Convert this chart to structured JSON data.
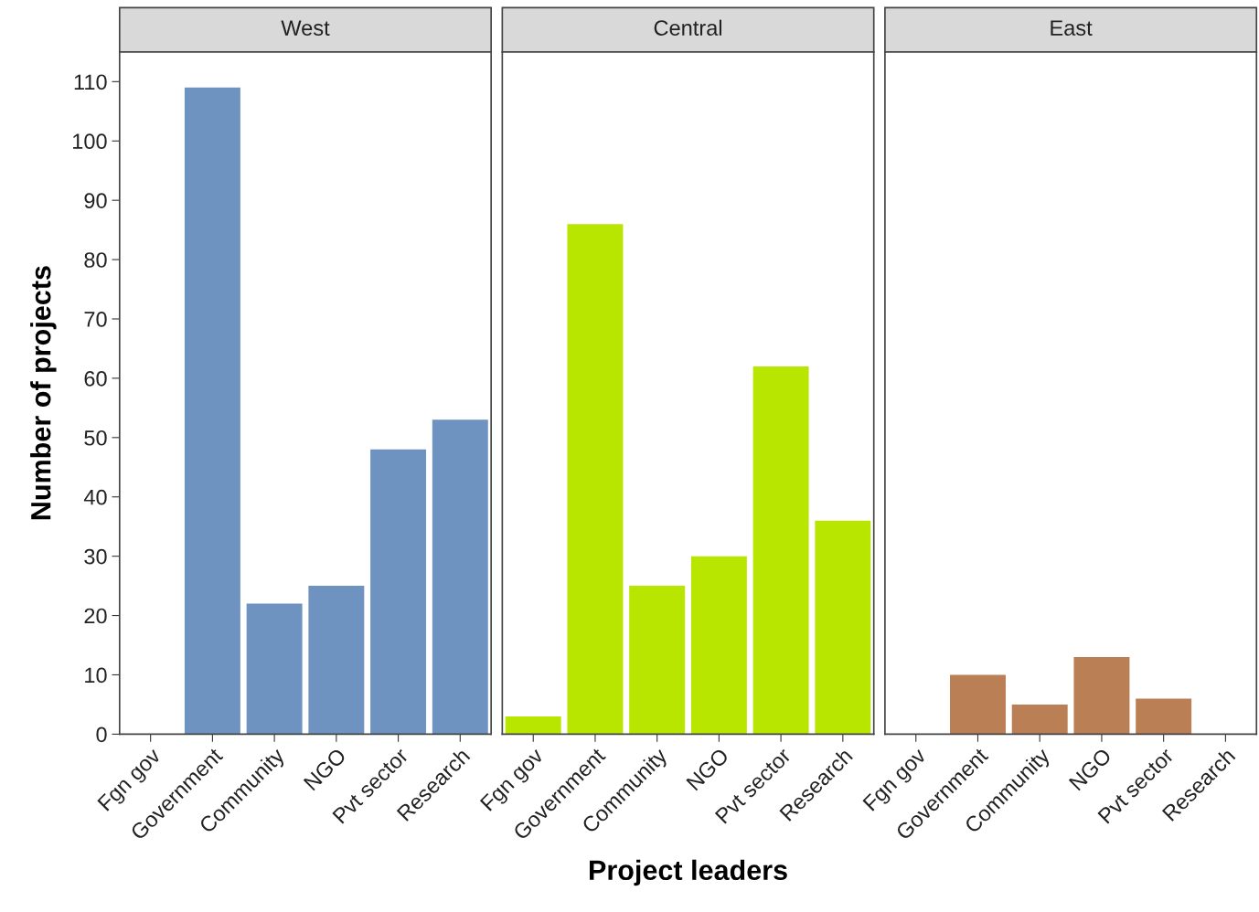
{
  "chart_data": [
    {
      "type": "bar",
      "title": "West",
      "ylabel": "Number of projects",
      "categories": [
        "Fgn gov",
        "Government",
        "Community",
        "NGO",
        "Pvt sector",
        "Research"
      ],
      "values": [
        0,
        109,
        22,
        25,
        48,
        53
      ],
      "color": "#6f93c1",
      "ylim": [
        0,
        115
      ],
      "yticks": [
        0,
        10,
        20,
        30,
        40,
        50,
        60,
        70,
        80,
        90,
        100,
        110
      ],
      "grid": false,
      "legend": false
    },
    {
      "type": "bar",
      "title": "Central",
      "xlabel": "Project leaders",
      "categories": [
        "Fgn gov",
        "Government",
        "Community",
        "NGO",
        "Pvt sector",
        "Research"
      ],
      "values": [
        3,
        86,
        25,
        30,
        62,
        36
      ],
      "color": "#b8e600",
      "ylim": [
        0,
        115
      ],
      "yticks": [
        0,
        10,
        20,
        30,
        40,
        50,
        60,
        70,
        80,
        90,
        100,
        110
      ],
      "tick_labels": "x",
      "grid": false,
      "legend": false
    },
    {
      "type": "bar",
      "title": "East",
      "categories": [
        "Fgn gov",
        "Government",
        "Community",
        "NGO",
        "Pvt sector",
        "Research"
      ],
      "values": [
        0,
        10,
        5,
        13,
        6,
        0
      ],
      "color": "#bb7f55",
      "ylim": [
        0,
        115
      ],
      "yticks": [
        0,
        10,
        20,
        30,
        40,
        50,
        60,
        70,
        80,
        90,
        100,
        110
      ],
      "tick_labels": "x",
      "grid": false,
      "legend": false
    }
  ]
}
